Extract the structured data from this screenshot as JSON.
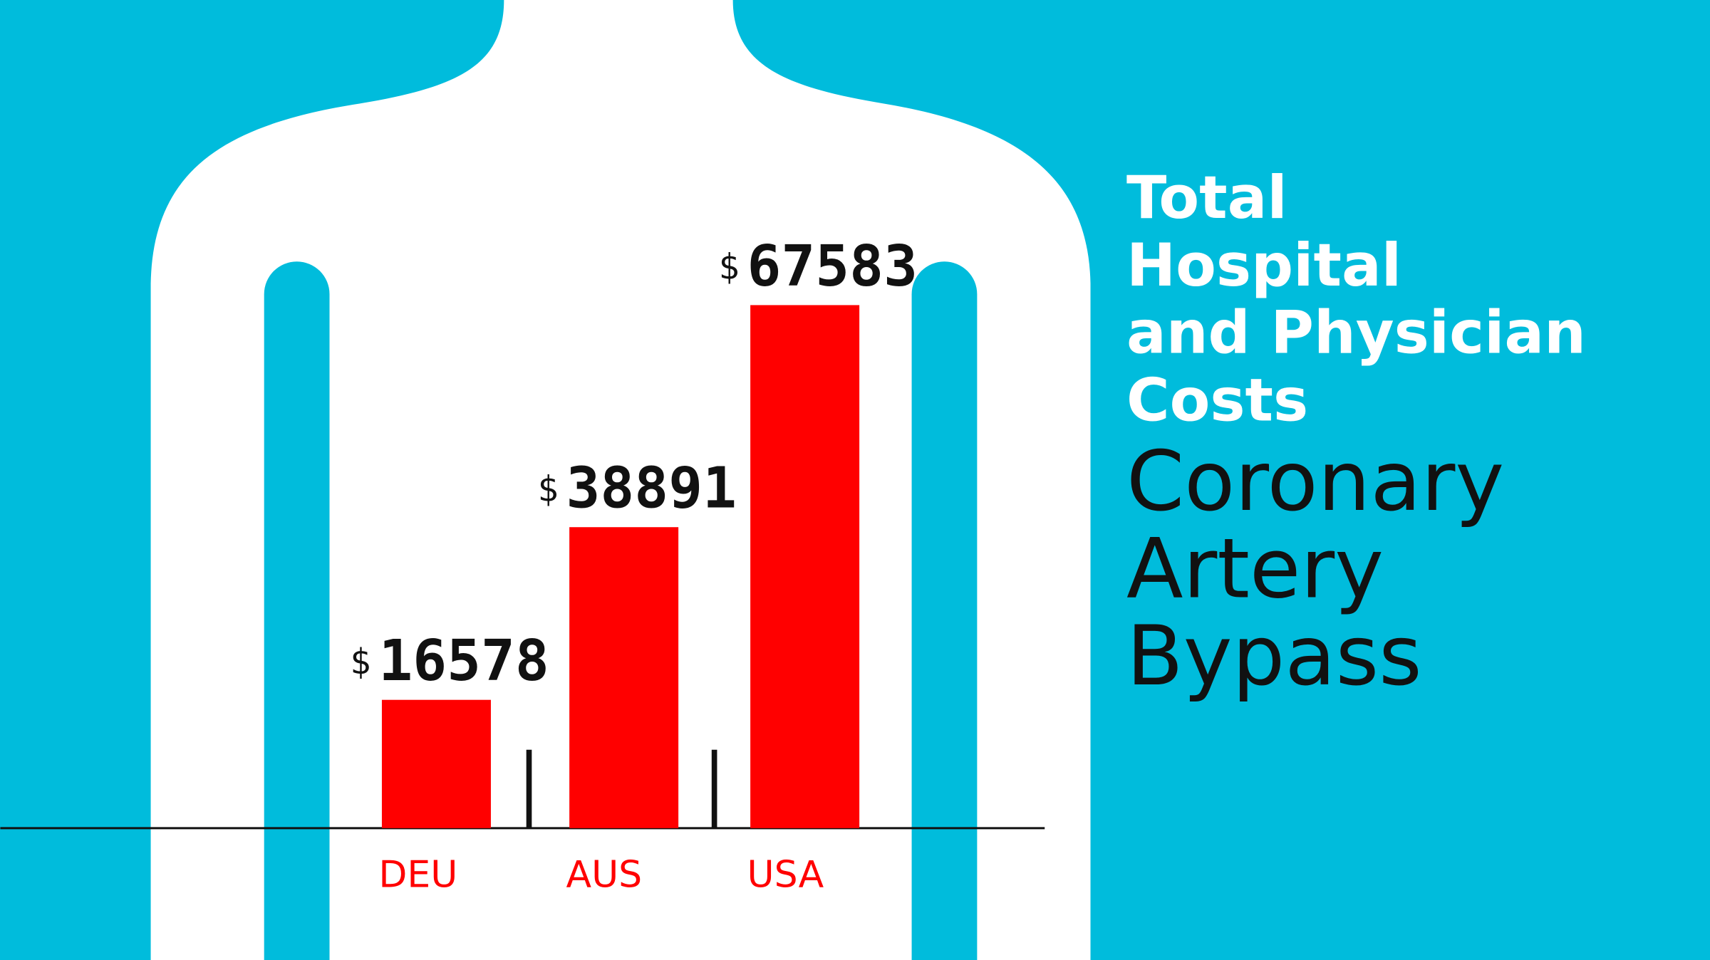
{
  "chart_data": {
    "type": "bar",
    "title": [
      "Total",
      "Hospital",
      "and Physician",
      "Costs"
    ],
    "subtitle": [
      "Coronary",
      "Artery",
      "Bypass"
    ],
    "categories": [
      "DEU",
      "AUS",
      "USA"
    ],
    "values": [
      16578,
      38891,
      67583
    ],
    "currency": "$",
    "color": "#ff0000"
  }
}
